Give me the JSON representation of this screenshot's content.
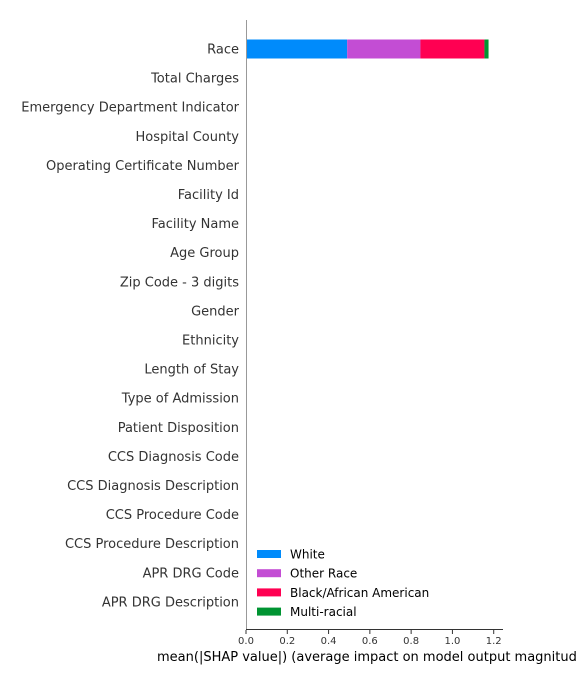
{
  "chart_data": {
    "type": "bar",
    "orientation": "horizontal",
    "stacked": true,
    "categories": [
      "Race",
      "Total Charges",
      "Emergency Department Indicator",
      "Hospital County",
      "Operating Certificate Number",
      "Facility Id",
      "Facility Name",
      "Age Group",
      "Zip Code - 3 digits",
      "Gender",
      "Ethnicity",
      "Length of Stay",
      "Type of Admission",
      "Patient Disposition",
      "CCS Diagnosis Code",
      "CCS Diagnosis Description",
      "CCS Procedure Code",
      "CCS Procedure Description",
      "APR DRG Code",
      "APR DRG Description"
    ],
    "series": [
      {
        "name": "White",
        "color": "#008bfb",
        "values": [
          0.49,
          0,
          0,
          0,
          0,
          0,
          0,
          0,
          0,
          0,
          0,
          0,
          0,
          0,
          0,
          0,
          0,
          0,
          0,
          0
        ]
      },
      {
        "name": "Other Race",
        "color": "#c34dd4",
        "values": [
          0.355,
          0,
          0,
          0,
          0,
          0,
          0,
          0,
          0,
          0,
          0,
          0,
          0,
          0,
          0,
          0,
          0,
          0,
          0,
          0
        ]
      },
      {
        "name": "Black/African American",
        "color": "#ff0052",
        "values": [
          0.31,
          0,
          0,
          0,
          0,
          0,
          0,
          0,
          0,
          0,
          0,
          0,
          0,
          0,
          0,
          0,
          0,
          0,
          0,
          0
        ]
      },
      {
        "name": "Multi-racial",
        "color": "#009432",
        "values": [
          0.02,
          0,
          0,
          0,
          0,
          0,
          0,
          0,
          0,
          0,
          0,
          0,
          0,
          0,
          0,
          0,
          0,
          0,
          0,
          0
        ]
      }
    ],
    "xlim": [
      0,
      1.245
    ],
    "xticks": [
      0.0,
      0.2,
      0.4,
      0.6,
      0.8,
      1.0,
      1.2
    ],
    "xtick_labels": [
      "0.0",
      "0.2",
      "0.4",
      "0.6",
      "0.8",
      "1.0",
      "1.2"
    ],
    "xlabel": "mean(|SHAP value|) (average impact on model output magnitude)",
    "ylabel": "",
    "title": "",
    "legend_position": "lower-right",
    "grid": false
  }
}
